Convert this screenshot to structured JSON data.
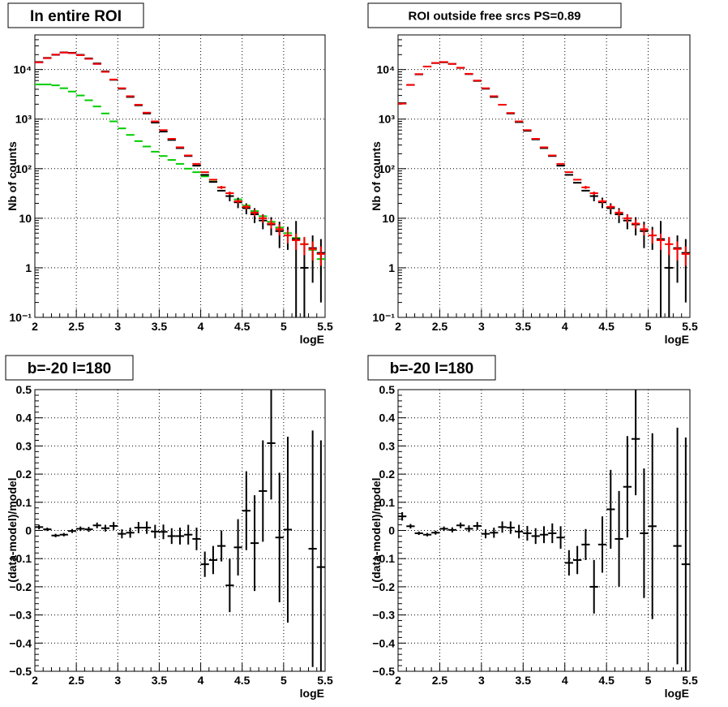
{
  "chart_data": [
    {
      "type": "scatter",
      "title": "In entire ROI",
      "xlabel": "logE",
      "ylabel": "Nb of counts",
      "xlim": [
        2,
        5.5
      ],
      "ylim": [
        0.1,
        50000
      ],
      "yscale": "log",
      "grid": true,
      "xticks": [
        "2",
        "2.5",
        "3",
        "3.5",
        "4",
        "4.5",
        "5",
        "5.5"
      ],
      "yticks": [
        {
          "v": 0.1,
          "label": "10⁻¹"
        },
        {
          "v": 1,
          "label": "1"
        },
        {
          "v": 10,
          "label": "10"
        },
        {
          "v": 100,
          "label": "10²"
        },
        {
          "v": 1000,
          "label": "10³"
        },
        {
          "v": 10000,
          "label": "10⁴"
        }
      ],
      "binwidth": 0.1,
      "series": [
        {
          "color": "#00cc00",
          "x": [
            2.05,
            2.15,
            2.25,
            2.35,
            2.45,
            2.55,
            2.65,
            2.75,
            2.85,
            2.95,
            3.05,
            3.15,
            3.25,
            3.35,
            3.45,
            3.55,
            3.65,
            3.75,
            3.85,
            3.95,
            4.05,
            4.15,
            4.25,
            4.35,
            4.45,
            4.55,
            4.65,
            4.75,
            4.85,
            4.95,
            5.05,
            5.15,
            5.25,
            5.35,
            5.45
          ],
          "y": [
            5000,
            5000,
            4800,
            4200,
            3600,
            3000,
            2400,
            1800,
            1300,
            900,
            650,
            480,
            360,
            280,
            220,
            180,
            150,
            125,
            100,
            85,
            70,
            55,
            42,
            32,
            24,
            18,
            14,
            11,
            8.5,
            6.5,
            5,
            4,
            3,
            2.3,
            1.5
          ],
          "err": [
            0,
            0,
            0,
            0,
            0,
            0,
            0,
            0,
            0,
            0,
            0,
            0,
            0,
            0,
            0,
            0,
            0,
            0,
            0,
            0,
            0,
            0,
            0,
            0,
            0,
            0,
            0,
            0,
            0,
            0,
            0,
            0,
            1,
            1,
            0.8
          ]
        },
        {
          "color": "#2222ff",
          "x": [
            2.05,
            2.15,
            2.25,
            2.35,
            2.45,
            2.55,
            2.65,
            2.75,
            2.85
          ],
          "y": [
            14000,
            17000,
            20000,
            22000,
            21500,
            19500,
            16500,
            13000,
            9000
          ],
          "err": [
            0,
            0,
            0,
            0,
            0,
            0,
            0,
            0,
            0
          ]
        },
        {
          "color": "#000000",
          "x": [
            2.05,
            2.15,
            2.25,
            2.35,
            2.45,
            2.55,
            2.65,
            2.75,
            2.85,
            2.95,
            3.05,
            3.15,
            3.25,
            3.35,
            3.45,
            3.55,
            3.65,
            3.75,
            3.85,
            3.95,
            4.05,
            4.15,
            4.25,
            4.35,
            4.45,
            4.55,
            4.65,
            4.75,
            4.85,
            4.95,
            5.05,
            5.15,
            5.25,
            5.35,
            5.45
          ],
          "y": [
            14200,
            17200,
            19800,
            22200,
            21800,
            19800,
            16800,
            13300,
            9200,
            6200,
            4100,
            2800,
            1900,
            1300,
            850,
            560,
            380,
            260,
            180,
            115,
            75,
            54,
            36,
            28,
            21,
            16,
            12,
            9,
            7.5,
            5.5,
            4.5,
            3.8,
            1,
            2.5,
            2
          ],
          "err": [
            0,
            0,
            0,
            0,
            0,
            0,
            0,
            0,
            0,
            0,
            0,
            0,
            0,
            0,
            0,
            0,
            0,
            0,
            0,
            0,
            0,
            0,
            0,
            6,
            5,
            4,
            4,
            3,
            3,
            3,
            2.2,
            5,
            3,
            2,
            1.8
          ]
        },
        {
          "color": "#ff0000",
          "x": [
            2.05,
            2.15,
            2.25,
            2.35,
            2.45,
            2.55,
            2.65,
            2.75,
            2.85,
            2.95,
            3.05,
            3.15,
            3.25,
            3.35,
            3.45,
            3.55,
            3.65,
            3.75,
            3.85,
            3.95,
            4.05,
            4.15,
            4.25,
            4.35,
            4.45,
            4.55,
            4.65,
            4.75,
            4.85,
            4.95,
            5.05,
            5.15,
            5.25,
            5.35,
            5.45
          ],
          "y": [
            14000,
            17000,
            20000,
            22000,
            21500,
            19500,
            16500,
            13000,
            9000,
            6300,
            4200,
            2900,
            1950,
            1350,
            900,
            600,
            400,
            270,
            185,
            125,
            85,
            60,
            42,
            32,
            22,
            17,
            13,
            10,
            7.8,
            6,
            4.5,
            3.6,
            3,
            2.4,
            1.9
          ],
          "err": [
            0,
            0,
            0,
            0,
            0,
            0,
            0,
            0,
            0,
            0,
            0,
            0,
            0,
            0,
            0,
            0,
            0,
            0,
            0,
            0,
            0,
            0,
            3,
            2.5,
            2,
            2,
            2,
            1.8,
            1.6,
            1.5,
            1.4,
            1.3,
            1.2,
            1,
            0.8
          ]
        }
      ]
    },
    {
      "type": "scatter",
      "title": "ROI outside free srcs PS=0.89",
      "xlabel": "logE",
      "ylabel": "Nb of counts",
      "xlim": [
        2,
        5.5
      ],
      "ylim": [
        0.1,
        50000
      ],
      "yscale": "log",
      "grid": true,
      "xticks": [
        "2",
        "2.5",
        "3",
        "3.5",
        "4",
        "4.5",
        "5",
        "5.5"
      ],
      "yticks": [
        {
          "v": 0.1,
          "label": "10⁻¹"
        },
        {
          "v": 1,
          "label": "1"
        },
        {
          "v": 10,
          "label": "10"
        },
        {
          "v": 100,
          "label": "10²"
        },
        {
          "v": 1000,
          "label": "10³"
        },
        {
          "v": 10000,
          "label": "10⁴"
        }
      ],
      "binwidth": 0.1,
      "series": [
        {
          "color": "#000000",
          "x": [
            2.05,
            2.15,
            2.25,
            2.35,
            2.45,
            2.55,
            2.65,
            2.75,
            2.85,
            2.95,
            3.05,
            3.15,
            3.25,
            3.35,
            3.45,
            3.55,
            3.65,
            3.75,
            3.85,
            3.95,
            4.05,
            4.15,
            4.25,
            4.35,
            4.45,
            4.55,
            4.65,
            4.75,
            4.85,
            4.95,
            5.05,
            5.15,
            5.25,
            5.35,
            5.45
          ],
          "y": [
            2100,
            4900,
            8000,
            11500,
            13500,
            14000,
            13000,
            10800,
            8100,
            5900,
            4100,
            2800,
            1950,
            1300,
            870,
            580,
            390,
            260,
            180,
            115,
            75,
            52,
            36,
            28,
            21,
            16,
            12,
            9,
            7.5,
            5.5,
            4.5,
            3.8,
            1,
            2.5,
            2
          ],
          "err": [
            0,
            0,
            0,
            0,
            0,
            0,
            0,
            0,
            0,
            0,
            0,
            0,
            0,
            0,
            0,
            0,
            0,
            0,
            0,
            0,
            0,
            0,
            0,
            6,
            5,
            4,
            4,
            3,
            3,
            3,
            2.2,
            5,
            3,
            2,
            1.8
          ]
        },
        {
          "color": "#ff0000",
          "x": [
            2.05,
            2.15,
            2.25,
            2.35,
            2.45,
            2.55,
            2.65,
            2.75,
            2.85,
            2.95,
            3.05,
            3.15,
            3.25,
            3.35,
            3.45,
            3.55,
            3.65,
            3.75,
            3.85,
            3.95,
            4.05,
            4.15,
            4.25,
            4.35,
            4.45,
            4.55,
            4.65,
            4.75,
            4.85,
            4.95,
            5.05,
            5.15,
            5.25,
            5.35,
            5.45
          ],
          "y": [
            2050,
            4900,
            8100,
            11500,
            13600,
            14200,
            13000,
            10900,
            8200,
            6000,
            4200,
            2900,
            1950,
            1330,
            900,
            600,
            400,
            270,
            185,
            125,
            85,
            60,
            42,
            32,
            22,
            17,
            13,
            10,
            7.8,
            6,
            4.5,
            3.6,
            3,
            2.4,
            1.9
          ],
          "err": [
            0,
            0,
            0,
            0,
            0,
            0,
            0,
            0,
            0,
            0,
            0,
            0,
            0,
            0,
            0,
            0,
            0,
            0,
            0,
            0,
            0,
            0,
            3,
            2.5,
            2,
            2,
            2,
            1.8,
            1.6,
            1.5,
            1.4,
            1.3,
            1.2,
            1,
            0.8
          ]
        }
      ]
    },
    {
      "type": "scatter",
      "title": "b=-20 l=180",
      "xlabel": "logE",
      "ylabel": "(data-model)/model",
      "xlim": [
        2,
        5.5
      ],
      "ylim": [
        -0.5,
        0.5
      ],
      "yscale": "linear",
      "grid": true,
      "xticks": [
        "2",
        "2.5",
        "3",
        "3.5",
        "4",
        "4.5",
        "5",
        "5.5"
      ],
      "yticks": [
        {
          "v": -0.5,
          "label": "−0.5"
        },
        {
          "v": -0.4,
          "label": "−0.4"
        },
        {
          "v": -0.3,
          "label": "−0.3"
        },
        {
          "v": -0.2,
          "label": "−0.2"
        },
        {
          "v": -0.1,
          "label": "−0.1"
        },
        {
          "v": 0,
          "label": "0"
        },
        {
          "v": 0.1,
          "label": "0.1"
        },
        {
          "v": 0.2,
          "label": "0.2"
        },
        {
          "v": 0.3,
          "label": "0.3"
        },
        {
          "v": 0.4,
          "label": "0.4"
        },
        {
          "v": 0.5,
          "label": "0.5"
        }
      ],
      "binwidth": 0.1,
      "series": [
        {
          "color": "#000000",
          "x": [
            2.05,
            2.15,
            2.25,
            2.35,
            2.45,
            2.55,
            2.65,
            2.75,
            2.85,
            2.95,
            3.05,
            3.15,
            3.25,
            3.35,
            3.45,
            3.55,
            3.65,
            3.75,
            3.85,
            3.95,
            4.05,
            4.15,
            4.25,
            4.35,
            4.45,
            4.55,
            4.65,
            4.75,
            4.85,
            4.95,
            5.05,
            5.35,
            5.45
          ],
          "y": [
            0.012,
            0.004,
            -0.018,
            -0.015,
            -0.002,
            0.006,
            0.004,
            0.018,
            0.008,
            0.016,
            -0.012,
            -0.008,
            0.01,
            0.01,
            -0.004,
            -0.005,
            -0.02,
            -0.02,
            -0.015,
            -0.03,
            -0.12,
            -0.105,
            -0.055,
            -0.195,
            -0.06,
            0.07,
            -0.045,
            0.14,
            0.31,
            -0.025,
            0.003,
            -0.065,
            -0.13
          ],
          "err": [
            0.008,
            0.006,
            0.006,
            0.006,
            0.007,
            0.008,
            0.009,
            0.01,
            0.012,
            0.014,
            0.016,
            0.018,
            0.02,
            0.022,
            0.024,
            0.026,
            0.028,
            0.03,
            0.035,
            0.04,
            0.045,
            0.05,
            0.055,
            0.095,
            0.1,
            0.14,
            0.17,
            0.18,
            0.2,
            0.23,
            0.33,
            0.42,
            0.45
          ]
        }
      ]
    },
    {
      "type": "scatter",
      "title": "b=-20 l=180",
      "xlabel": "logE",
      "ylabel": "(data-model)/model",
      "xlim": [
        2,
        5.5
      ],
      "ylim": [
        -0.5,
        0.5
      ],
      "yscale": "linear",
      "grid": true,
      "xticks": [
        "2",
        "2.5",
        "3",
        "3.5",
        "4",
        "4.5",
        "5",
        "5.5"
      ],
      "yticks": [
        {
          "v": -0.5,
          "label": "−0.5"
        },
        {
          "v": -0.4,
          "label": "−0.4"
        },
        {
          "v": -0.3,
          "label": "−0.3"
        },
        {
          "v": -0.2,
          "label": "−0.2"
        },
        {
          "v": -0.1,
          "label": "−0.1"
        },
        {
          "v": 0,
          "label": "0"
        },
        {
          "v": 0.1,
          "label": "0.1"
        },
        {
          "v": 0.2,
          "label": "0.2"
        },
        {
          "v": 0.3,
          "label": "0.3"
        },
        {
          "v": 0.4,
          "label": "0.4"
        },
        {
          "v": 0.5,
          "label": "0.5"
        }
      ],
      "binwidth": 0.1,
      "series": [
        {
          "color": "#000000",
          "x": [
            2.05,
            2.15,
            2.25,
            2.35,
            2.45,
            2.55,
            2.65,
            2.75,
            2.85,
            2.95,
            3.05,
            3.15,
            3.25,
            3.35,
            3.45,
            3.55,
            3.65,
            3.75,
            3.85,
            3.95,
            4.05,
            4.15,
            4.25,
            4.35,
            4.45,
            4.55,
            4.65,
            4.75,
            4.85,
            4.95,
            5.05,
            5.35,
            5.45
          ],
          "y": [
            0.05,
            0.015,
            -0.01,
            -0.015,
            -0.008,
            0.006,
            0.002,
            0.018,
            0.006,
            0.016,
            -0.012,
            -0.008,
            0.012,
            0.01,
            -0.004,
            -0.01,
            -0.02,
            -0.015,
            -0.01,
            -0.025,
            -0.115,
            -0.105,
            -0.05,
            -0.2,
            -0.05,
            0.075,
            -0.03,
            0.155,
            0.325,
            -0.01,
            0.015,
            -0.055,
            -0.12
          ],
          "err": [
            0.015,
            0.008,
            0.006,
            0.006,
            0.007,
            0.008,
            0.009,
            0.01,
            0.012,
            0.014,
            0.016,
            0.018,
            0.02,
            0.022,
            0.024,
            0.026,
            0.028,
            0.03,
            0.035,
            0.04,
            0.045,
            0.05,
            0.055,
            0.095,
            0.1,
            0.14,
            0.17,
            0.18,
            0.2,
            0.23,
            0.33,
            0.42,
            0.45
          ]
        }
      ]
    }
  ]
}
